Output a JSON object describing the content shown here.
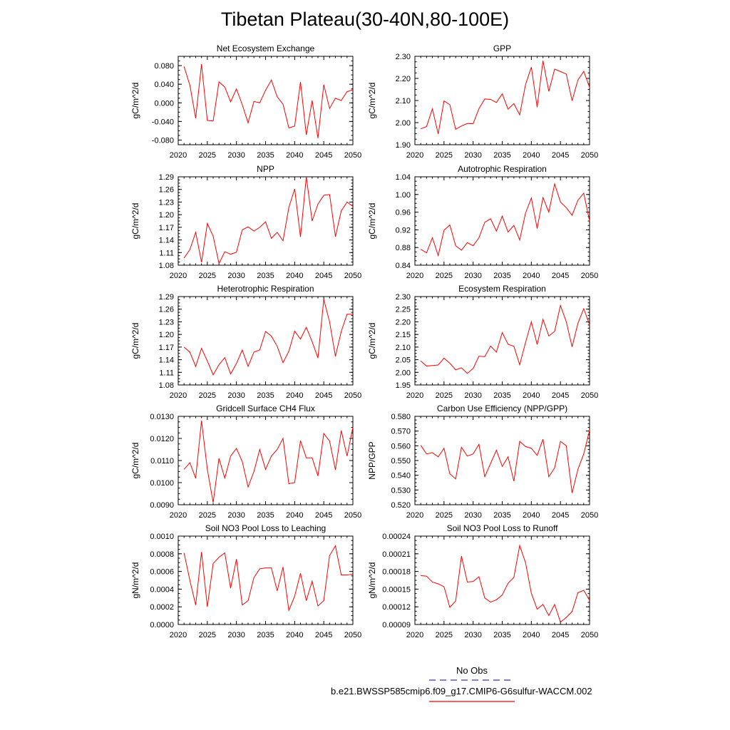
{
  "title": "Tibetan Plateau(30-40N,80-100E)",
  "legend": {
    "entries": [
      {
        "label": "No Obs",
        "color": "#3333cc",
        "dashed": true
      },
      {
        "label": "b.e21.BWSSP585cmip6.f09_g17.CMIP6-G6sulfur-WACCM.002",
        "color": "#ff0000",
        "dashed": false
      }
    ]
  },
  "line_color": "#ff0000",
  "chart_data": [
    {
      "type": "line",
      "title": "Net Ecosystem Exchange",
      "ylabel": "gC/m^2/d",
      "ylim": [
        -0.09,
        0.1
      ],
      "yticks": [
        "0.080",
        "0.040",
        "0.000",
        "-0.040",
        "-0.080"
      ],
      "ytick_values": [
        0.08,
        0.04,
        0.0,
        -0.04,
        -0.08
      ],
      "xlim": [
        2020,
        2050
      ],
      "xticks": [
        2020,
        2025,
        2030,
        2035,
        2040,
        2045,
        2050
      ],
      "x": [
        2021,
        2022,
        2023,
        2024,
        2025,
        2026,
        2027,
        2028,
        2029,
        2030,
        2031,
        2032,
        2033,
        2034,
        2035,
        2036,
        2037,
        2038,
        2039,
        2040,
        2041,
        2042,
        2043,
        2044,
        2045,
        2046,
        2047,
        2048,
        2049,
        2050
      ],
      "series": [
        {
          "values": [
            0.078,
            0.038,
            -0.033,
            0.083,
            -0.038,
            -0.039,
            0.045,
            0.034,
            0.002,
            0.03,
            -0.004,
            -0.043,
            0.003,
            0.0,
            0.027,
            0.049,
            0.013,
            -0.003,
            -0.054,
            -0.05,
            0.045,
            -0.069,
            0.005,
            -0.076,
            0.039,
            -0.012,
            0.01,
            0.005,
            0.024,
            0.028
          ]
        }
      ]
    },
    {
      "type": "line",
      "title": "GPP",
      "ylabel": "gC/m^2/d",
      "ylim": [
        1.9,
        2.3
      ],
      "yticks": [
        "2.30",
        "2.20",
        "2.10",
        "2.00",
        "1.90"
      ],
      "ytick_values": [
        2.3,
        2.2,
        2.1,
        2.0,
        1.9
      ],
      "xlim": [
        2020,
        2050
      ],
      "xticks": [
        2020,
        2025,
        2030,
        2035,
        2040,
        2045,
        2050
      ],
      "x": [
        2021,
        2022,
        2023,
        2024,
        2025,
        2026,
        2027,
        2028,
        2029,
        2030,
        2031,
        2032,
        2033,
        2034,
        2035,
        2036,
        2037,
        2038,
        2039,
        2040,
        2041,
        2042,
        2043,
        2044,
        2045,
        2046,
        2047,
        2048,
        2049,
        2050
      ],
      "series": [
        {
          "values": [
            1.972,
            1.982,
            2.062,
            1.949,
            2.098,
            2.081,
            1.97,
            1.985,
            1.996,
            1.995,
            2.063,
            2.107,
            2.105,
            2.091,
            2.13,
            2.061,
            2.086,
            2.035,
            2.172,
            2.251,
            2.07,
            2.28,
            2.141,
            2.242,
            2.231,
            2.22,
            2.099,
            2.193,
            2.232,
            2.16
          ]
        }
      ]
    },
    {
      "type": "line",
      "title": "NPP",
      "ylabel": "gC/m^2/d",
      "ylim": [
        1.08,
        1.29
      ],
      "yticks": [
        "1.29",
        "1.26",
        "1.23",
        "1.20",
        "1.17",
        "1.14",
        "1.11",
        "1.08"
      ],
      "ytick_values": [
        1.29,
        1.26,
        1.23,
        1.2,
        1.17,
        1.14,
        1.11,
        1.08
      ],
      "xlim": [
        2020,
        2050
      ],
      "xticks": [
        2020,
        2025,
        2030,
        2035,
        2040,
        2045,
        2050
      ],
      "x": [
        2021,
        2022,
        2023,
        2024,
        2025,
        2026,
        2027,
        2028,
        2029,
        2030,
        2031,
        2032,
        2033,
        2034,
        2035,
        2036,
        2037,
        2038,
        2039,
        2040,
        2041,
        2042,
        2043,
        2044,
        2045,
        2046,
        2047,
        2048,
        2049,
        2050
      ],
      "series": [
        {
          "values": [
            1.097,
            1.117,
            1.158,
            1.087,
            1.179,
            1.149,
            1.084,
            1.112,
            1.106,
            1.111,
            1.164,
            1.171,
            1.161,
            1.17,
            1.183,
            1.144,
            1.158,
            1.138,
            1.217,
            1.261,
            1.147,
            1.29,
            1.185,
            1.225,
            1.246,
            1.248,
            1.148,
            1.209,
            1.23,
            1.22
          ]
        }
      ]
    },
    {
      "type": "line",
      "title": "Autotrophic Respiration",
      "ylabel": "gC/m^2/d",
      "ylim": [
        0.84,
        1.04
      ],
      "yticks": [
        "1.04",
        "1.00",
        "0.96",
        "0.92",
        "0.88",
        "0.84"
      ],
      "ytick_values": [
        1.04,
        1.0,
        0.96,
        0.92,
        0.88,
        0.84
      ],
      "xlim": [
        2020,
        2050
      ],
      "xticks": [
        2020,
        2025,
        2030,
        2035,
        2040,
        2045,
        2050
      ],
      "x": [
        2021,
        2022,
        2023,
        2024,
        2025,
        2026,
        2027,
        2028,
        2029,
        2030,
        2031,
        2032,
        2033,
        2034,
        2035,
        2036,
        2037,
        2038,
        2039,
        2040,
        2041,
        2042,
        2043,
        2044,
        2045,
        2046,
        2047,
        2048,
        2049,
        2050
      ],
      "series": [
        {
          "values": [
            0.876,
            0.868,
            0.902,
            0.862,
            0.919,
            0.931,
            0.884,
            0.874,
            0.891,
            0.884,
            0.902,
            0.937,
            0.945,
            0.917,
            0.951,
            0.915,
            0.93,
            0.897,
            0.958,
            0.992,
            0.923,
            0.993,
            0.96,
            1.024,
            0.983,
            0.97,
            0.953,
            0.987,
            1.003,
            0.94
          ]
        }
      ]
    },
    {
      "type": "line",
      "title": "Heterotrophic Respiration",
      "ylabel": "gC/m^2/d",
      "ylim": [
        1.08,
        1.29
      ],
      "yticks": [
        "1.29",
        "1.26",
        "1.23",
        "1.20",
        "1.17",
        "1.14",
        "1.11",
        "1.08"
      ],
      "ytick_values": [
        1.29,
        1.26,
        1.23,
        1.2,
        1.17,
        1.14,
        1.11,
        1.08
      ],
      "xlim": [
        2020,
        2050
      ],
      "xticks": [
        2020,
        2025,
        2030,
        2035,
        2040,
        2045,
        2050
      ],
      "x": [
        2021,
        2022,
        2023,
        2024,
        2025,
        2026,
        2027,
        2028,
        2029,
        2030,
        2031,
        2032,
        2033,
        2034,
        2035,
        2036,
        2037,
        2038,
        2039,
        2040,
        2041,
        2042,
        2043,
        2044,
        2045,
        2046,
        2047,
        2048,
        2049,
        2050
      ],
      "series": [
        {
          "values": [
            1.17,
            1.158,
            1.124,
            1.167,
            1.137,
            1.104,
            1.128,
            1.145,
            1.106,
            1.131,
            1.163,
            1.124,
            1.158,
            1.163,
            1.207,
            1.196,
            1.172,
            1.133,
            1.16,
            1.208,
            1.189,
            1.217,
            1.183,
            1.144,
            1.283,
            1.23,
            1.148,
            1.207,
            1.248,
            1.248
          ]
        }
      ]
    },
    {
      "type": "line",
      "title": "Ecosystem Respiration",
      "ylabel": "gC/m^2/d",
      "ylim": [
        1.95,
        2.3
      ],
      "yticks": [
        "2.30",
        "2.25",
        "2.20",
        "2.15",
        "2.10",
        "2.05",
        "2.00",
        "1.95"
      ],
      "ytick_values": [
        2.3,
        2.25,
        2.2,
        2.15,
        2.1,
        2.05,
        2.0,
        1.95
      ],
      "xlim": [
        2020,
        2050
      ],
      "xticks": [
        2020,
        2025,
        2030,
        2035,
        2040,
        2045,
        2050
      ],
      "x": [
        2021,
        2022,
        2023,
        2024,
        2025,
        2026,
        2027,
        2028,
        2029,
        2030,
        2031,
        2032,
        2033,
        2034,
        2035,
        2036,
        2037,
        2038,
        2039,
        2040,
        2041,
        2042,
        2043,
        2044,
        2045,
        2046,
        2047,
        2048,
        2049,
        2050
      ],
      "series": [
        {
          "values": [
            2.045,
            2.025,
            2.027,
            2.029,
            2.056,
            2.036,
            2.01,
            2.018,
            1.996,
            2.015,
            2.064,
            2.062,
            2.104,
            2.08,
            2.157,
            2.111,
            2.103,
            2.03,
            2.118,
            2.2,
            2.11,
            2.21,
            2.144,
            2.162,
            2.265,
            2.2,
            2.101,
            2.194,
            2.252,
            2.188
          ]
        }
      ]
    },
    {
      "type": "line",
      "title": "Gridcell Surface CH4 Flux",
      "ylabel": "gC/m^2/d",
      "ylim": [
        0.009,
        0.013
      ],
      "yticks": [
        "0.0130",
        "0.0120",
        "0.0110",
        "0.0100",
        "0.0090"
      ],
      "ytick_values": [
        0.013,
        0.012,
        0.011,
        0.01,
        0.009
      ],
      "xlim": [
        2020,
        2050
      ],
      "xticks": [
        2020,
        2025,
        2030,
        2035,
        2040,
        2045,
        2050
      ],
      "x": [
        2021,
        2022,
        2023,
        2024,
        2025,
        2026,
        2027,
        2028,
        2029,
        2030,
        2031,
        2032,
        2033,
        2034,
        2035,
        2036,
        2037,
        2038,
        2039,
        2040,
        2041,
        2042,
        2043,
        2044,
        2045,
        2046,
        2047,
        2048,
        2049,
        2050
      ],
      "series": [
        {
          "values": [
            0.0106,
            0.0109,
            0.0102,
            0.0128,
            0.0106,
            0.0091,
            0.0111,
            0.0102,
            0.0112,
            0.01155,
            0.01095,
            0.0098,
            0.0105,
            0.0115,
            0.0106,
            0.0112,
            0.0115,
            0.012,
            0.00995,
            0.01,
            0.0119,
            0.01112,
            0.01112,
            0.0103,
            0.01222,
            0.01188,
            0.01058,
            0.01235,
            0.0112,
            0.0125
          ]
        }
      ]
    },
    {
      "type": "line",
      "title": "Carbon Use Efficiency (NPP/GPP)",
      "ylabel": "NPP/GPP",
      "ylim": [
        0.52,
        0.58
      ],
      "yticks": [
        "0.580",
        "0.570",
        "0.560",
        "0.550",
        "0.540",
        "0.530",
        "0.520"
      ],
      "ytick_values": [
        0.58,
        0.57,
        0.56,
        0.55,
        0.54,
        0.53,
        0.52
      ],
      "xlim": [
        2020,
        2050
      ],
      "xticks": [
        2020,
        2025,
        2030,
        2035,
        2040,
        2045,
        2050
      ],
      "x": [
        2021,
        2022,
        2023,
        2024,
        2025,
        2026,
        2027,
        2028,
        2029,
        2030,
        2031,
        2032,
        2033,
        2034,
        2035,
        2036,
        2037,
        2038,
        2039,
        2040,
        2041,
        2042,
        2043,
        2044,
        2045,
        2046,
        2047,
        2048,
        2049,
        2050
      ],
      "series": [
        {
          "values": [
            0.5603,
            0.5545,
            0.5553,
            0.5525,
            0.5583,
            0.541,
            0.5375,
            0.559,
            0.553,
            0.5545,
            0.561,
            0.539,
            0.548,
            0.557,
            0.546,
            0.5525,
            0.536,
            0.563,
            0.5595,
            0.5583,
            0.5535,
            0.5645,
            0.539,
            0.545,
            0.563,
            0.56,
            0.528,
            0.544,
            0.5545,
            0.5705
          ]
        }
      ]
    },
    {
      "type": "line",
      "title": "Soil NO3 Pool Loss to Leaching",
      "ylabel": "gN/m^2/d",
      "ylim": [
        0.0,
        0.001
      ],
      "yticks": [
        "0.0010",
        "0.0008",
        "0.0006",
        "0.0004",
        "0.0002",
        "0.0000"
      ],
      "ytick_values": [
        0.001,
        0.0008,
        0.0006,
        0.0004,
        0.0002,
        0.0
      ],
      "xlim": [
        2020,
        2050
      ],
      "xticks": [
        2020,
        2025,
        2030,
        2035,
        2040,
        2045,
        2050
      ],
      "x": [
        2021,
        2022,
        2023,
        2024,
        2025,
        2026,
        2027,
        2028,
        2029,
        2030,
        2031,
        2032,
        2033,
        2034,
        2035,
        2036,
        2037,
        2038,
        2039,
        2040,
        2041,
        2042,
        2043,
        2044,
        2045,
        2046,
        2047,
        2048,
        2049,
        2050
      ],
      "series": [
        {
          "values": [
            0.00081,
            0.0005,
            0.00022,
            0.00082,
            0.0002,
            0.00069,
            0.00076,
            0.00081,
            0.00041,
            0.00074,
            0.00022,
            0.00027,
            0.00053,
            0.00063,
            0.00064,
            0.00064,
            0.00038,
            0.00065,
            0.00016,
            0.00032,
            0.00058,
            0.00027,
            0.00049,
            0.00021,
            0.00027,
            0.00078,
            0.00089,
            0.00056,
            0.00056,
            0.00057
          ]
        }
      ]
    },
    {
      "type": "line",
      "title": "Soil NO3 Pool Loss to Runoff",
      "ylabel": "gN/m^2/d",
      "ylim": [
        9e-05,
        0.00024
      ],
      "yticks": [
        "0.00024",
        "0.00021",
        "0.00018",
        "0.00015",
        "0.00012",
        "0.00009"
      ],
      "ytick_values": [
        0.00024,
        0.00021,
        0.00018,
        0.00015,
        0.00012,
        9e-05
      ],
      "xlim": [
        2020,
        2050
      ],
      "xticks": [
        2020,
        2025,
        2030,
        2035,
        2040,
        2045,
        2050
      ],
      "x": [
        2021,
        2022,
        2023,
        2024,
        2025,
        2026,
        2027,
        2028,
        2029,
        2030,
        2031,
        2032,
        2033,
        2034,
        2035,
        2036,
        2037,
        2038,
        2039,
        2040,
        2041,
        2042,
        2043,
        2044,
        2045,
        2046,
        2047,
        2048,
        2049,
        2050
      ],
      "series": [
        {
          "values": [
            0.000173,
            0.000172,
            0.000162,
            0.000159,
            0.000154,
            0.000119,
            0.00013,
            0.000206,
            0.000162,
            0.000163,
            0.000171,
            0.000135,
            0.000128,
            0.000132,
            0.00014,
            0.00016,
            0.00017,
            0.000224,
            0.000195,
            0.000143,
            0.000116,
            0.000124,
            0.000105,
            0.000124,
            9.4e-05,
            0.000102,
            0.000112,
            0.000144,
            0.000148,
            0.000131
          ]
        }
      ]
    }
  ]
}
